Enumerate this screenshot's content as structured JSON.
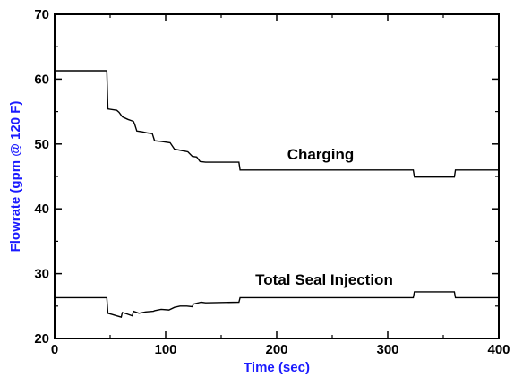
{
  "chart_data": {
    "type": "line",
    "xlabel": "Time (sec)",
    "ylabel": "Flowrate (gpm @ 120 F)",
    "xlim": [
      0,
      400
    ],
    "ylim": [
      20,
      70
    ],
    "x_ticks": [
      0,
      100,
      200,
      300,
      400
    ],
    "y_ticks": [
      20,
      30,
      40,
      50,
      60,
      70
    ],
    "grid": false,
    "axis_label_color": "#1a1aff",
    "series": [
      {
        "name": "Charging",
        "color": "#000000",
        "points": [
          [
            0,
            61.3
          ],
          [
            47,
            61.3
          ],
          [
            48,
            55.4
          ],
          [
            56,
            55.2
          ],
          [
            58,
            54.9
          ],
          [
            61,
            54.2
          ],
          [
            66,
            53.8
          ],
          [
            71,
            53.5
          ],
          [
            72,
            53.1
          ],
          [
            74,
            52.0
          ],
          [
            78,
            51.9
          ],
          [
            84,
            51.7
          ],
          [
            88,
            51.6
          ],
          [
            90,
            50.5
          ],
          [
            96,
            50.4
          ],
          [
            104,
            50.2
          ],
          [
            108,
            49.2
          ],
          [
            114,
            49.0
          ],
          [
            120,
            48.8
          ],
          [
            124,
            48.1
          ],
          [
            128,
            48.0
          ],
          [
            131,
            47.3
          ],
          [
            136,
            47.2
          ],
          [
            166,
            47.2
          ],
          [
            167,
            46.0
          ],
          [
            323,
            46.0
          ],
          [
            324,
            44.9
          ],
          [
            360,
            44.9
          ],
          [
            361,
            46.0
          ],
          [
            400,
            46.0
          ]
        ]
      },
      {
        "name": "Total Seal Injection",
        "color": "#000000",
        "points": [
          [
            0,
            26.3
          ],
          [
            47,
            26.3
          ],
          [
            48,
            23.9
          ],
          [
            52,
            23.7
          ],
          [
            56,
            23.5
          ],
          [
            60,
            23.3
          ],
          [
            61,
            24.0
          ],
          [
            65,
            23.8
          ],
          [
            70,
            23.5
          ],
          [
            71,
            24.2
          ],
          [
            76,
            23.9
          ],
          [
            82,
            24.1
          ],
          [
            89,
            24.2
          ],
          [
            90,
            24.3
          ],
          [
            96,
            24.5
          ],
          [
            103,
            24.4
          ],
          [
            108,
            24.8
          ],
          [
            113,
            25.0
          ],
          [
            119,
            25.0
          ],
          [
            124,
            24.9
          ],
          [
            125,
            25.3
          ],
          [
            132,
            25.6
          ],
          [
            136,
            25.5
          ],
          [
            166,
            25.6
          ],
          [
            167,
            26.3
          ],
          [
            323,
            26.3
          ],
          [
            324,
            27.2
          ],
          [
            360,
            27.2
          ],
          [
            361,
            26.3
          ],
          [
            400,
            26.3
          ]
        ]
      }
    ]
  },
  "labels": {
    "charging": "Charging",
    "seal_injection": "Total Seal Injection"
  }
}
